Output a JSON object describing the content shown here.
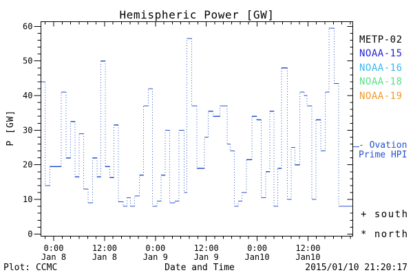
{
  "title": "Hemispheric Power [GW]",
  "y_axis_label": "P [GW]",
  "x_axis_label": "Date and Time",
  "footer": {
    "left": "Plot: CCMC",
    "right": "2015/01/10 21:20:17"
  },
  "legend": {
    "satellites": [
      {
        "label": "METP-02",
        "color": "#000000"
      },
      {
        "label": "NOAA-15",
        "color": "#2222dd"
      },
      {
        "label": "NOAA-16",
        "color": "#38b8f0"
      },
      {
        "label": "NOAA-18",
        "color": "#58e088"
      },
      {
        "label": "NOAA-19",
        "color": "#f09928"
      }
    ],
    "ovation": {
      "line1": "- Ovation",
      "line2": "Prime HPI",
      "color": "#2451cf"
    },
    "south": "+ south",
    "north": "* north"
  },
  "chart_data": {
    "type": "line",
    "line_style": "step: solid horizontal segments, dotted vertical connectors",
    "line_color": "#2451cf",
    "title": "Hemispheric Power [GW]",
    "xlabel": "Date and Time",
    "ylabel": "P [GW]",
    "series_name": "Ovation Prime HPI",
    "ylim": [
      0,
      60
    ],
    "y_major_ticks": [
      0,
      10,
      20,
      30,
      40,
      50,
      60
    ],
    "y_minor_step": 2,
    "x_hours_range": [
      -2.9,
      70.5
    ],
    "x_minor_step_hours": 2,
    "x_ticks": [
      {
        "hour": 0,
        "time": "0:00",
        "date": "Jan 8"
      },
      {
        "hour": 12,
        "time": "12:00",
        "date": "Jan 8"
      },
      {
        "hour": 24,
        "time": "0:00",
        "date": "Jan 9"
      },
      {
        "hour": 36,
        "time": "12:00",
        "date": "Jan 9"
      },
      {
        "hour": 48,
        "time": "0:00",
        "date": "Jan10"
      },
      {
        "hour": 60,
        "time": "12:00",
        "date": "Jan10"
      }
    ],
    "x_unit": "hours from 2015-01-08 00:00 UT",
    "end_hour": 70.5,
    "steps_hour_value": [
      [
        -2.9,
        44
      ],
      [
        -2.0,
        14
      ],
      [
        -0.9,
        19.5
      ],
      [
        1.8,
        41
      ],
      [
        2.9,
        22
      ],
      [
        4.0,
        32.5
      ],
      [
        5.0,
        16.5
      ],
      [
        6.0,
        29
      ],
      [
        7.1,
        13
      ],
      [
        8.1,
        9
      ],
      [
        9.2,
        22
      ],
      [
        10.2,
        16.5
      ],
      [
        11.1,
        50
      ],
      [
        12.2,
        19.5
      ],
      [
        13.2,
        16.3
      ],
      [
        14.2,
        31.5
      ],
      [
        15.3,
        9.3
      ],
      [
        16.4,
        8
      ],
      [
        17.3,
        10.5
      ],
      [
        18.1,
        8
      ],
      [
        19.1,
        11
      ],
      [
        20.2,
        17
      ],
      [
        21.2,
        37
      ],
      [
        22.3,
        42
      ],
      [
        23.3,
        8
      ],
      [
        24.4,
        9.5
      ],
      [
        25.3,
        17
      ],
      [
        26.3,
        30
      ],
      [
        27.4,
        9
      ],
      [
        28.6,
        9.5
      ],
      [
        29.6,
        30
      ],
      [
        30.8,
        12
      ],
      [
        31.4,
        56.5
      ],
      [
        32.6,
        37
      ],
      [
        33.8,
        19
      ],
      [
        35.6,
        28
      ],
      [
        36.5,
        35.5
      ],
      [
        37.6,
        34
      ],
      [
        39.2,
        37
      ],
      [
        40.9,
        26
      ],
      [
        41.7,
        24
      ],
      [
        42.6,
        8
      ],
      [
        43.5,
        9.5
      ],
      [
        44.4,
        12
      ],
      [
        45.5,
        21.5
      ],
      [
        46.8,
        34
      ],
      [
        47.9,
        33
      ],
      [
        49.0,
        10.5
      ],
      [
        50.0,
        18
      ],
      [
        51.0,
        35.5
      ],
      [
        52.0,
        8
      ],
      [
        52.9,
        19
      ],
      [
        53.8,
        48
      ],
      [
        55.1,
        10
      ],
      [
        56.0,
        25
      ],
      [
        56.9,
        20
      ],
      [
        58.1,
        41
      ],
      [
        59.1,
        40
      ],
      [
        59.8,
        37
      ],
      [
        60.9,
        10
      ],
      [
        61.9,
        33
      ],
      [
        63.0,
        24
      ],
      [
        64.1,
        41
      ],
      [
        65.0,
        59.5
      ],
      [
        66.2,
        43.5
      ],
      [
        67.2,
        8
      ]
    ]
  }
}
